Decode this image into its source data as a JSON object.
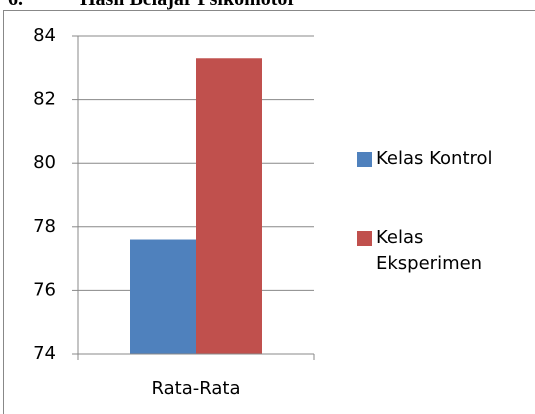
{
  "heading": {
    "number": "6.",
    "title": "Hasil Belajar Psikomotor"
  },
  "chart_data": {
    "type": "bar",
    "categories": [
      "Rata-Rata"
    ],
    "series": [
      {
        "name": "Kelas Kontrol",
        "color": "#4f81bd",
        "values": [
          77.6
        ]
      },
      {
        "name": "Kelas Eksperimen",
        "color": "#c0504d",
        "values": [
          83.3
        ]
      }
    ],
    "ylim": [
      74,
      84
    ],
    "yticks": [
      74,
      76,
      78,
      80,
      82,
      84
    ],
    "grid": true,
    "legend": "right"
  }
}
